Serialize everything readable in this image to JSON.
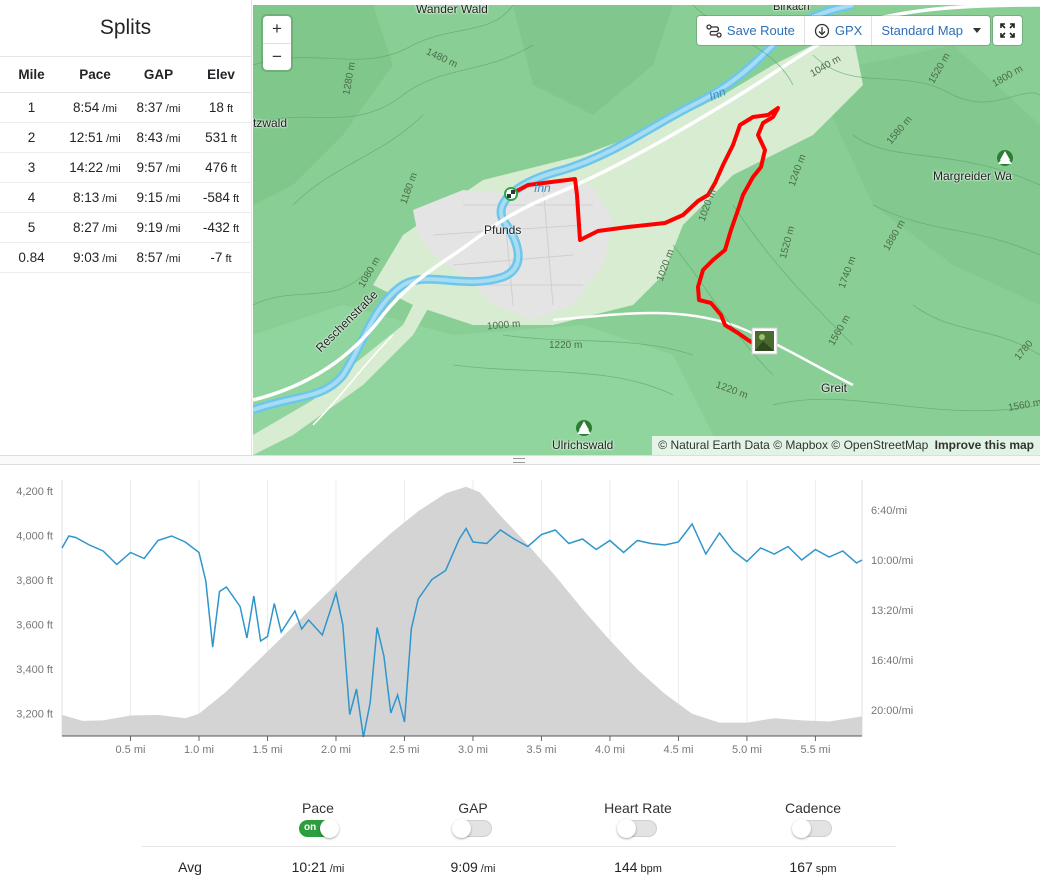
{
  "splits": {
    "title": "Splits",
    "columns": [
      "Mile",
      "Pace",
      "GAP",
      "Elev"
    ],
    "rows": [
      {
        "mile": "1",
        "pace": "8:54",
        "pace_unit": "/mi",
        "gap": "8:37",
        "gap_unit": "/mi",
        "elev": "18",
        "elev_unit": "ft"
      },
      {
        "mile": "2",
        "pace": "12:51",
        "pace_unit": "/mi",
        "gap": "8:43",
        "gap_unit": "/mi",
        "elev": "531",
        "elev_unit": "ft"
      },
      {
        "mile": "3",
        "pace": "14:22",
        "pace_unit": "/mi",
        "gap": "9:57",
        "gap_unit": "/mi",
        "elev": "476",
        "elev_unit": "ft"
      },
      {
        "mile": "4",
        "pace": "8:13",
        "pace_unit": "/mi",
        "gap": "9:15",
        "gap_unit": "/mi",
        "elev": "-584",
        "elev_unit": "ft"
      },
      {
        "mile": "5",
        "pace": "8:27",
        "pace_unit": "/mi",
        "gap": "9:19",
        "gap_unit": "/mi",
        "elev": "-432",
        "elev_unit": "ft"
      },
      {
        "mile": "0.84",
        "pace": "9:03",
        "pace_unit": "/mi",
        "gap": "8:57",
        "gap_unit": "/mi",
        "elev": "-7",
        "elev_unit": "ft"
      }
    ]
  },
  "map": {
    "zoom_in": "+",
    "zoom_out": "−",
    "save_route": "Save Route",
    "gpx": "GPX",
    "map_style": "Standard Map",
    "attribution": {
      "natural_earth": "© Natural Earth Data",
      "mapbox": "© Mapbox",
      "osm": "© OpenStreetMap",
      "improve": "Improve this map"
    },
    "places": {
      "wander_wald": "Wander Wald",
      "pfunds": "Pfunds",
      "inn_river": "Inn",
      "inn_river_2": "Inn",
      "margreider": "Margreider Wa",
      "ulrichswald": "Ulrichswald",
      "greit": "Greit",
      "reschenstrasse": "Reschenstraße",
      "birkach": "Birkach",
      "tzwald": "tzwald"
    },
    "contours": [
      "1480 m",
      "1280 m",
      "1180 m",
      "1080 m",
      "1000 m",
      "1220 m",
      "1040 m",
      "1520 m",
      "1800 m",
      "1580 m",
      "1240 m",
      "1020 m",
      "1520 m",
      "1880 m",
      "1740 m",
      "1560 m",
      "1220 m",
      "1780",
      "1560 m",
      "1020 m"
    ]
  },
  "colors": {
    "pace_line": "#2e96cc",
    "elevation_fill": "#d4d4d4",
    "route": "#ff0000",
    "toggle_on": "#2d9d3f",
    "link": "#2f6fb6"
  },
  "chart_data": {
    "type": "area+line",
    "x_unit": "mi",
    "x_ticks": [
      "0.5 mi",
      "1.0 mi",
      "1.5 mi",
      "2.0 mi",
      "2.5 mi",
      "3.0 mi",
      "3.5 mi",
      "4.0 mi",
      "4.5 mi",
      "5.0 mi",
      "5.5 mi"
    ],
    "y_left_ticks": [
      "4,200 ft",
      "4,000 ft",
      "3,800 ft",
      "3,600 ft",
      "3,400 ft",
      "3,200 ft"
    ],
    "y_right_ticks": [
      "6:40/mi",
      "10:00/mi",
      "13:20/mi",
      "16:40/mi",
      "20:00/mi"
    ],
    "xlim": [
      0,
      5.84
    ],
    "ylim_left": [
      3100,
      4250
    ],
    "series": [
      {
        "name": "Elevation",
        "axis": "left_ft",
        "x": [
          0,
          0.15,
          0.3,
          0.5,
          0.7,
          0.9,
          1.0,
          1.2,
          1.4,
          1.6,
          1.8,
          2.0,
          2.2,
          2.4,
          2.6,
          2.8,
          2.95,
          3.05,
          3.2,
          3.4,
          3.6,
          3.8,
          4.0,
          4.2,
          4.4,
          4.6,
          4.8,
          5.0,
          5.2,
          5.4,
          5.6,
          5.84
        ],
        "y": [
          3195,
          3168,
          3170,
          3192,
          3195,
          3180,
          3200,
          3300,
          3420,
          3540,
          3660,
          3780,
          3900,
          4010,
          4110,
          4190,
          4220,
          4195,
          4090,
          3960,
          3820,
          3670,
          3530,
          3400,
          3290,
          3200,
          3160,
          3160,
          3180,
          3170,
          3165,
          3188
        ]
      },
      {
        "name": "Pace",
        "axis": "right_pace_min_per_mi",
        "x": [
          0,
          0.05,
          0.1,
          0.2,
          0.3,
          0.4,
          0.5,
          0.6,
          0.7,
          0.8,
          0.9,
          1.0,
          1.05,
          1.1,
          1.15,
          1.2,
          1.3,
          1.35,
          1.4,
          1.45,
          1.5,
          1.55,
          1.6,
          1.7,
          1.75,
          1.8,
          1.9,
          2.0,
          2.05,
          2.1,
          2.15,
          2.2,
          2.25,
          2.3,
          2.35,
          2.4,
          2.45,
          2.5,
          2.55,
          2.6,
          2.7,
          2.8,
          2.9,
          2.95,
          3.0,
          3.1,
          3.2,
          3.3,
          3.4,
          3.5,
          3.6,
          3.7,
          3.8,
          3.9,
          4.0,
          4.1,
          4.2,
          4.3,
          4.4,
          4.5,
          4.6,
          4.7,
          4.8,
          4.9,
          5.0,
          5.1,
          5.2,
          5.3,
          5.4,
          5.5,
          5.6,
          5.7,
          5.8,
          5.84
        ],
        "y": [
          9.2,
          8.4,
          8.5,
          9.0,
          9.4,
          10.3,
          9.5,
          9.9,
          8.7,
          8.4,
          8.8,
          9.5,
          11.4,
          15.8,
          12.1,
          11.8,
          13.1,
          15.2,
          12.4,
          15.4,
          15.1,
          12.9,
          14.8,
          13.4,
          14.6,
          14.0,
          15.0,
          12.2,
          14.3,
          20.3,
          18.6,
          21.8,
          19.5,
          14.5,
          16.4,
          20.2,
          19.0,
          20.8,
          14.6,
          12.6,
          11.3,
          10.7,
          8.6,
          7.9,
          8.8,
          8.9,
          8.0,
          8.6,
          9.1,
          8.3,
          8.0,
          8.9,
          8.6,
          9.3,
          8.7,
          9.5,
          8.7,
          8.9,
          9.0,
          8.8,
          7.6,
          9.6,
          8.2,
          9.4,
          10.1,
          9.2,
          9.6,
          9.1,
          10.0,
          9.3,
          9.8,
          9.4,
          10.2,
          10.0
        ]
      }
    ]
  },
  "stats": {
    "toggles": [
      {
        "label": "Pace",
        "on": true,
        "on_text": "on"
      },
      {
        "label": "GAP",
        "on": false
      },
      {
        "label": "Heart Rate",
        "on": false
      },
      {
        "label": "Cadence",
        "on": false
      }
    ],
    "avg_label": "Avg",
    "avg": [
      {
        "value": "10:21",
        "unit": "/mi"
      },
      {
        "value": "9:09",
        "unit": "/mi"
      },
      {
        "value": "144",
        "unit": "bpm"
      },
      {
        "value": "167",
        "unit": "spm"
      }
    ]
  }
}
